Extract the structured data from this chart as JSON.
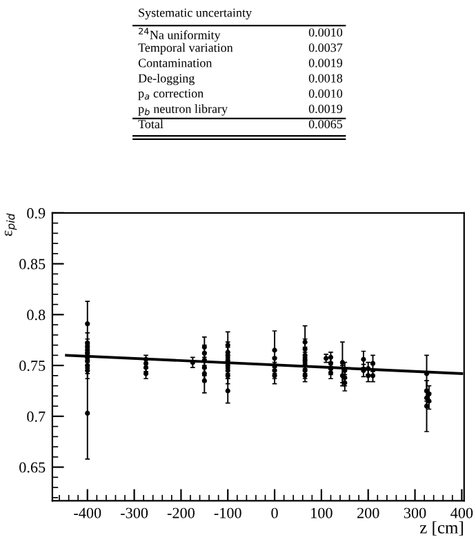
{
  "chart_data": {
    "type": "scatter",
    "ylabel": "ε$_{pid}$",
    "xlabel": "z [cm]",
    "annotations": [
      "Systematic uncertainty",
      "$^{24}$Na uniformity",
      "0.0010",
      "Temporal variation",
      "0.0037",
      "Contamination",
      "0.0019",
      "De-logging",
      "0.0018",
      "p$_{a}$ correction",
      "0.0010",
      "p$_{b}$ neutron library",
      "0.0019",
      "Total",
      "0.0065"
    ],
    "xlim": [
      -475,
      405
    ],
    "xticks": [
      -400,
      -300,
      -200,
      -100,
      0,
      100,
      200,
      300,
      400
    ],
    "ylim": [
      0.617,
      0.9
    ],
    "yticks": [
      0.65,
      0.7,
      0.75,
      0.8,
      0.85,
      0.9
    ],
    "grid": false,
    "legend": false,
    "series": [
      {
        "color": "#000000",
        "marker": "circle",
        "x": [
          -400,
          -400,
          -400,
          -400,
          -400,
          -400,
          -400,
          -400,
          -400,
          -400,
          -275,
          -275,
          -275,
          -275,
          -175,
          -150,
          -150,
          -150,
          -150,
          -150,
          -150,
          -100,
          -100,
          -100,
          -100,
          -100,
          -100,
          -100,
          -100,
          0,
          0,
          0,
          0,
          0,
          65,
          65,
          65,
          65,
          65,
          65,
          65,
          110,
          120,
          120,
          120,
          120,
          145,
          145,
          150,
          150,
          150,
          190,
          190,
          200,
          200,
          210,
          210,
          325,
          325,
          325,
          325,
          330,
          330
        ],
        "values": [
          0.791,
          0.772,
          0.768,
          0.765,
          0.762,
          0.758,
          0.755,
          0.75,
          0.745,
          0.703,
          0.756,
          0.752,
          0.748,
          0.742,
          0.753,
          0.768,
          0.762,
          0.755,
          0.748,
          0.742,
          0.735,
          0.77,
          0.763,
          0.76,
          0.755,
          0.75,
          0.745,
          0.74,
          0.725,
          0.765,
          0.757,
          0.75,
          0.745,
          0.74,
          0.773,
          0.766,
          0.76,
          0.755,
          0.75,
          0.745,
          0.74,
          0.757,
          0.758,
          0.752,
          0.747,
          0.743,
          0.753,
          0.74,
          0.745,
          0.738,
          0.733,
          0.756,
          0.745,
          0.747,
          0.74,
          0.752,
          0.74,
          0.742,
          0.725,
          0.718,
          0.71,
          0.722,
          0.715
        ],
        "errors": [
          0.022,
          0.01,
          0.008,
          0.008,
          0.008,
          0.008,
          0.008,
          0.008,
          0.008,
          0.045,
          0.004,
          0.004,
          0.004,
          0.005,
          0.005,
          0.01,
          0.008,
          0.008,
          0.008,
          0.008,
          0.012,
          0.013,
          0.01,
          0.008,
          0.008,
          0.008,
          0.008,
          0.008,
          0.012,
          0.019,
          0.008,
          0.008,
          0.008,
          0.008,
          0.016,
          0.01,
          0.008,
          0.008,
          0.008,
          0.008,
          0.006,
          0.004,
          0.005,
          0.006,
          0.006,
          0.006,
          0.02,
          0.01,
          0.008,
          0.008,
          0.008,
          0.008,
          0.006,
          0.006,
          0.006,
          0.008,
          0.006,
          0.018,
          0.01,
          0.008,
          0.025,
          0.008,
          0.008
        ]
      },
      {
        "type": "line",
        "color": "#000000",
        "marker": "none",
        "line_style": "solid",
        "x": [
          -445,
          400
        ],
        "values": [
          0.76,
          0.742
        ]
      }
    ]
  }
}
